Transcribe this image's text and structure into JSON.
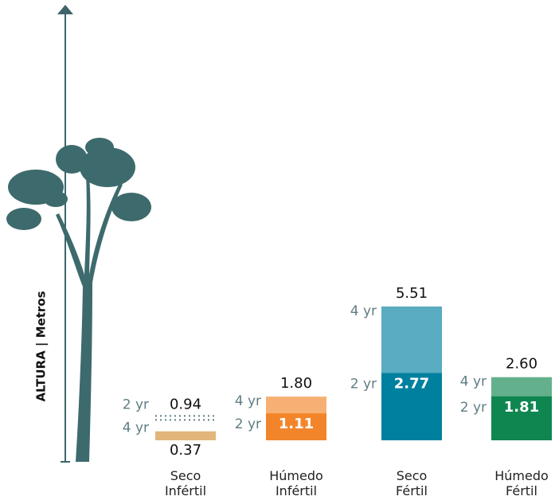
{
  "chart_data": {
    "type": "growth-bars",
    "y_label": "ALTURA | Metros",
    "categories": [
      "Seco Infértil",
      "Húmedo Infértil",
      "Seco Fértil",
      "Húmedo Fértil"
    ],
    "category_colors": [
      "#e2b57b",
      "#f2852a",
      "#00809f",
      "#0f8650"
    ],
    "series": [
      {
        "name": "2 yr",
        "values": [
          0.94,
          1.11,
          2.77,
          1.81
        ],
        "value_labels": [
          "0.94",
          "1.11",
          "2.77",
          "1.81"
        ]
      },
      {
        "name": "4 yr",
        "values": [
          0.37,
          1.8,
          5.51,
          2.6
        ],
        "value_labels": [
          "0.37",
          "1.80",
          "5.51",
          "2.60"
        ]
      }
    ]
  }
}
